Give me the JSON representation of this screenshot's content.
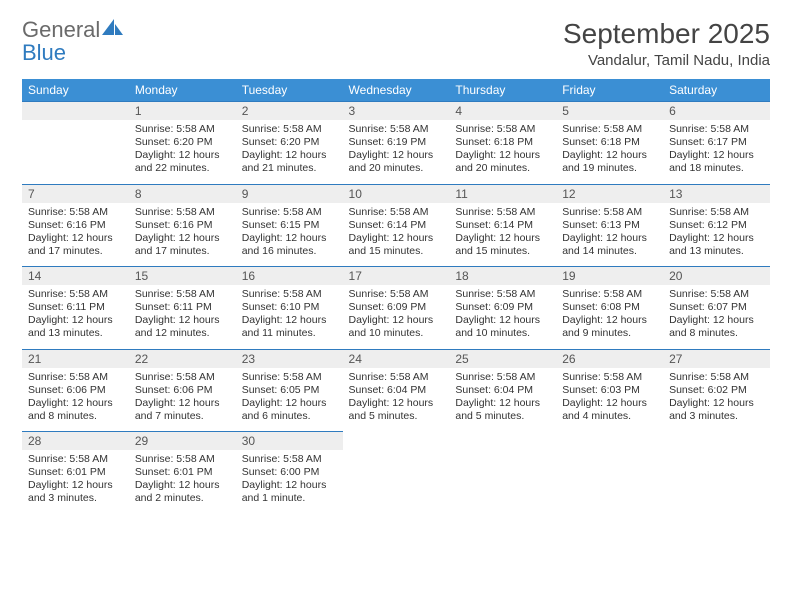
{
  "brand": {
    "line1": "General",
    "line2": "Blue",
    "icon_color": "#2f7bbf"
  },
  "header": {
    "title": "September 2025",
    "location": "Vandalur, Tamil Nadu, India"
  },
  "colors": {
    "header_bg": "#3b8fd4",
    "header_text": "#ffffff",
    "rule": "#2f7bbf",
    "daynum_bg": "#eeeeee",
    "text": "#333333",
    "background": "#ffffff"
  },
  "typography": {
    "title_fontsize": 28,
    "location_fontsize": 15,
    "th_fontsize": 12,
    "cell_fontsize": 10.5
  },
  "day_headers": [
    "Sunday",
    "Monday",
    "Tuesday",
    "Wednesday",
    "Thursday",
    "Friday",
    "Saturday"
  ],
  "weeks": [
    [
      {
        "blank": true
      },
      {
        "day": "1",
        "sunrise": "Sunrise: 5:58 AM",
        "sunset": "Sunset: 6:20 PM",
        "daylight": "Daylight: 12 hours and 22 minutes."
      },
      {
        "day": "2",
        "sunrise": "Sunrise: 5:58 AM",
        "sunset": "Sunset: 6:20 PM",
        "daylight": "Daylight: 12 hours and 21 minutes."
      },
      {
        "day": "3",
        "sunrise": "Sunrise: 5:58 AM",
        "sunset": "Sunset: 6:19 PM",
        "daylight": "Daylight: 12 hours and 20 minutes."
      },
      {
        "day": "4",
        "sunrise": "Sunrise: 5:58 AM",
        "sunset": "Sunset: 6:18 PM",
        "daylight": "Daylight: 12 hours and 20 minutes."
      },
      {
        "day": "5",
        "sunrise": "Sunrise: 5:58 AM",
        "sunset": "Sunset: 6:18 PM",
        "daylight": "Daylight: 12 hours and 19 minutes."
      },
      {
        "day": "6",
        "sunrise": "Sunrise: 5:58 AM",
        "sunset": "Sunset: 6:17 PM",
        "daylight": "Daylight: 12 hours and 18 minutes."
      }
    ],
    [
      {
        "day": "7",
        "sunrise": "Sunrise: 5:58 AM",
        "sunset": "Sunset: 6:16 PM",
        "daylight": "Daylight: 12 hours and 17 minutes."
      },
      {
        "day": "8",
        "sunrise": "Sunrise: 5:58 AM",
        "sunset": "Sunset: 6:16 PM",
        "daylight": "Daylight: 12 hours and 17 minutes."
      },
      {
        "day": "9",
        "sunrise": "Sunrise: 5:58 AM",
        "sunset": "Sunset: 6:15 PM",
        "daylight": "Daylight: 12 hours and 16 minutes."
      },
      {
        "day": "10",
        "sunrise": "Sunrise: 5:58 AM",
        "sunset": "Sunset: 6:14 PM",
        "daylight": "Daylight: 12 hours and 15 minutes."
      },
      {
        "day": "11",
        "sunrise": "Sunrise: 5:58 AM",
        "sunset": "Sunset: 6:14 PM",
        "daylight": "Daylight: 12 hours and 15 minutes."
      },
      {
        "day": "12",
        "sunrise": "Sunrise: 5:58 AM",
        "sunset": "Sunset: 6:13 PM",
        "daylight": "Daylight: 12 hours and 14 minutes."
      },
      {
        "day": "13",
        "sunrise": "Sunrise: 5:58 AM",
        "sunset": "Sunset: 6:12 PM",
        "daylight": "Daylight: 12 hours and 13 minutes."
      }
    ],
    [
      {
        "day": "14",
        "sunrise": "Sunrise: 5:58 AM",
        "sunset": "Sunset: 6:11 PM",
        "daylight": "Daylight: 12 hours and 13 minutes."
      },
      {
        "day": "15",
        "sunrise": "Sunrise: 5:58 AM",
        "sunset": "Sunset: 6:11 PM",
        "daylight": "Daylight: 12 hours and 12 minutes."
      },
      {
        "day": "16",
        "sunrise": "Sunrise: 5:58 AM",
        "sunset": "Sunset: 6:10 PM",
        "daylight": "Daylight: 12 hours and 11 minutes."
      },
      {
        "day": "17",
        "sunrise": "Sunrise: 5:58 AM",
        "sunset": "Sunset: 6:09 PM",
        "daylight": "Daylight: 12 hours and 10 minutes."
      },
      {
        "day": "18",
        "sunrise": "Sunrise: 5:58 AM",
        "sunset": "Sunset: 6:09 PM",
        "daylight": "Daylight: 12 hours and 10 minutes."
      },
      {
        "day": "19",
        "sunrise": "Sunrise: 5:58 AM",
        "sunset": "Sunset: 6:08 PM",
        "daylight": "Daylight: 12 hours and 9 minutes."
      },
      {
        "day": "20",
        "sunrise": "Sunrise: 5:58 AM",
        "sunset": "Sunset: 6:07 PM",
        "daylight": "Daylight: 12 hours and 8 minutes."
      }
    ],
    [
      {
        "day": "21",
        "sunrise": "Sunrise: 5:58 AM",
        "sunset": "Sunset: 6:06 PM",
        "daylight": "Daylight: 12 hours and 8 minutes."
      },
      {
        "day": "22",
        "sunrise": "Sunrise: 5:58 AM",
        "sunset": "Sunset: 6:06 PM",
        "daylight": "Daylight: 12 hours and 7 minutes."
      },
      {
        "day": "23",
        "sunrise": "Sunrise: 5:58 AM",
        "sunset": "Sunset: 6:05 PM",
        "daylight": "Daylight: 12 hours and 6 minutes."
      },
      {
        "day": "24",
        "sunrise": "Sunrise: 5:58 AM",
        "sunset": "Sunset: 6:04 PM",
        "daylight": "Daylight: 12 hours and 5 minutes."
      },
      {
        "day": "25",
        "sunrise": "Sunrise: 5:58 AM",
        "sunset": "Sunset: 6:04 PM",
        "daylight": "Daylight: 12 hours and 5 minutes."
      },
      {
        "day": "26",
        "sunrise": "Sunrise: 5:58 AM",
        "sunset": "Sunset: 6:03 PM",
        "daylight": "Daylight: 12 hours and 4 minutes."
      },
      {
        "day": "27",
        "sunrise": "Sunrise: 5:58 AM",
        "sunset": "Sunset: 6:02 PM",
        "daylight": "Daylight: 12 hours and 3 minutes."
      }
    ],
    [
      {
        "day": "28",
        "sunrise": "Sunrise: 5:58 AM",
        "sunset": "Sunset: 6:01 PM",
        "daylight": "Daylight: 12 hours and 3 minutes."
      },
      {
        "day": "29",
        "sunrise": "Sunrise: 5:58 AM",
        "sunset": "Sunset: 6:01 PM",
        "daylight": "Daylight: 12 hours and 2 minutes."
      },
      {
        "day": "30",
        "sunrise": "Sunrise: 5:58 AM",
        "sunset": "Sunset: 6:00 PM",
        "daylight": "Daylight: 12 hours and 1 minute."
      },
      {
        "blank": true
      },
      {
        "blank": true
      },
      {
        "blank": true
      },
      {
        "blank": true
      }
    ]
  ]
}
